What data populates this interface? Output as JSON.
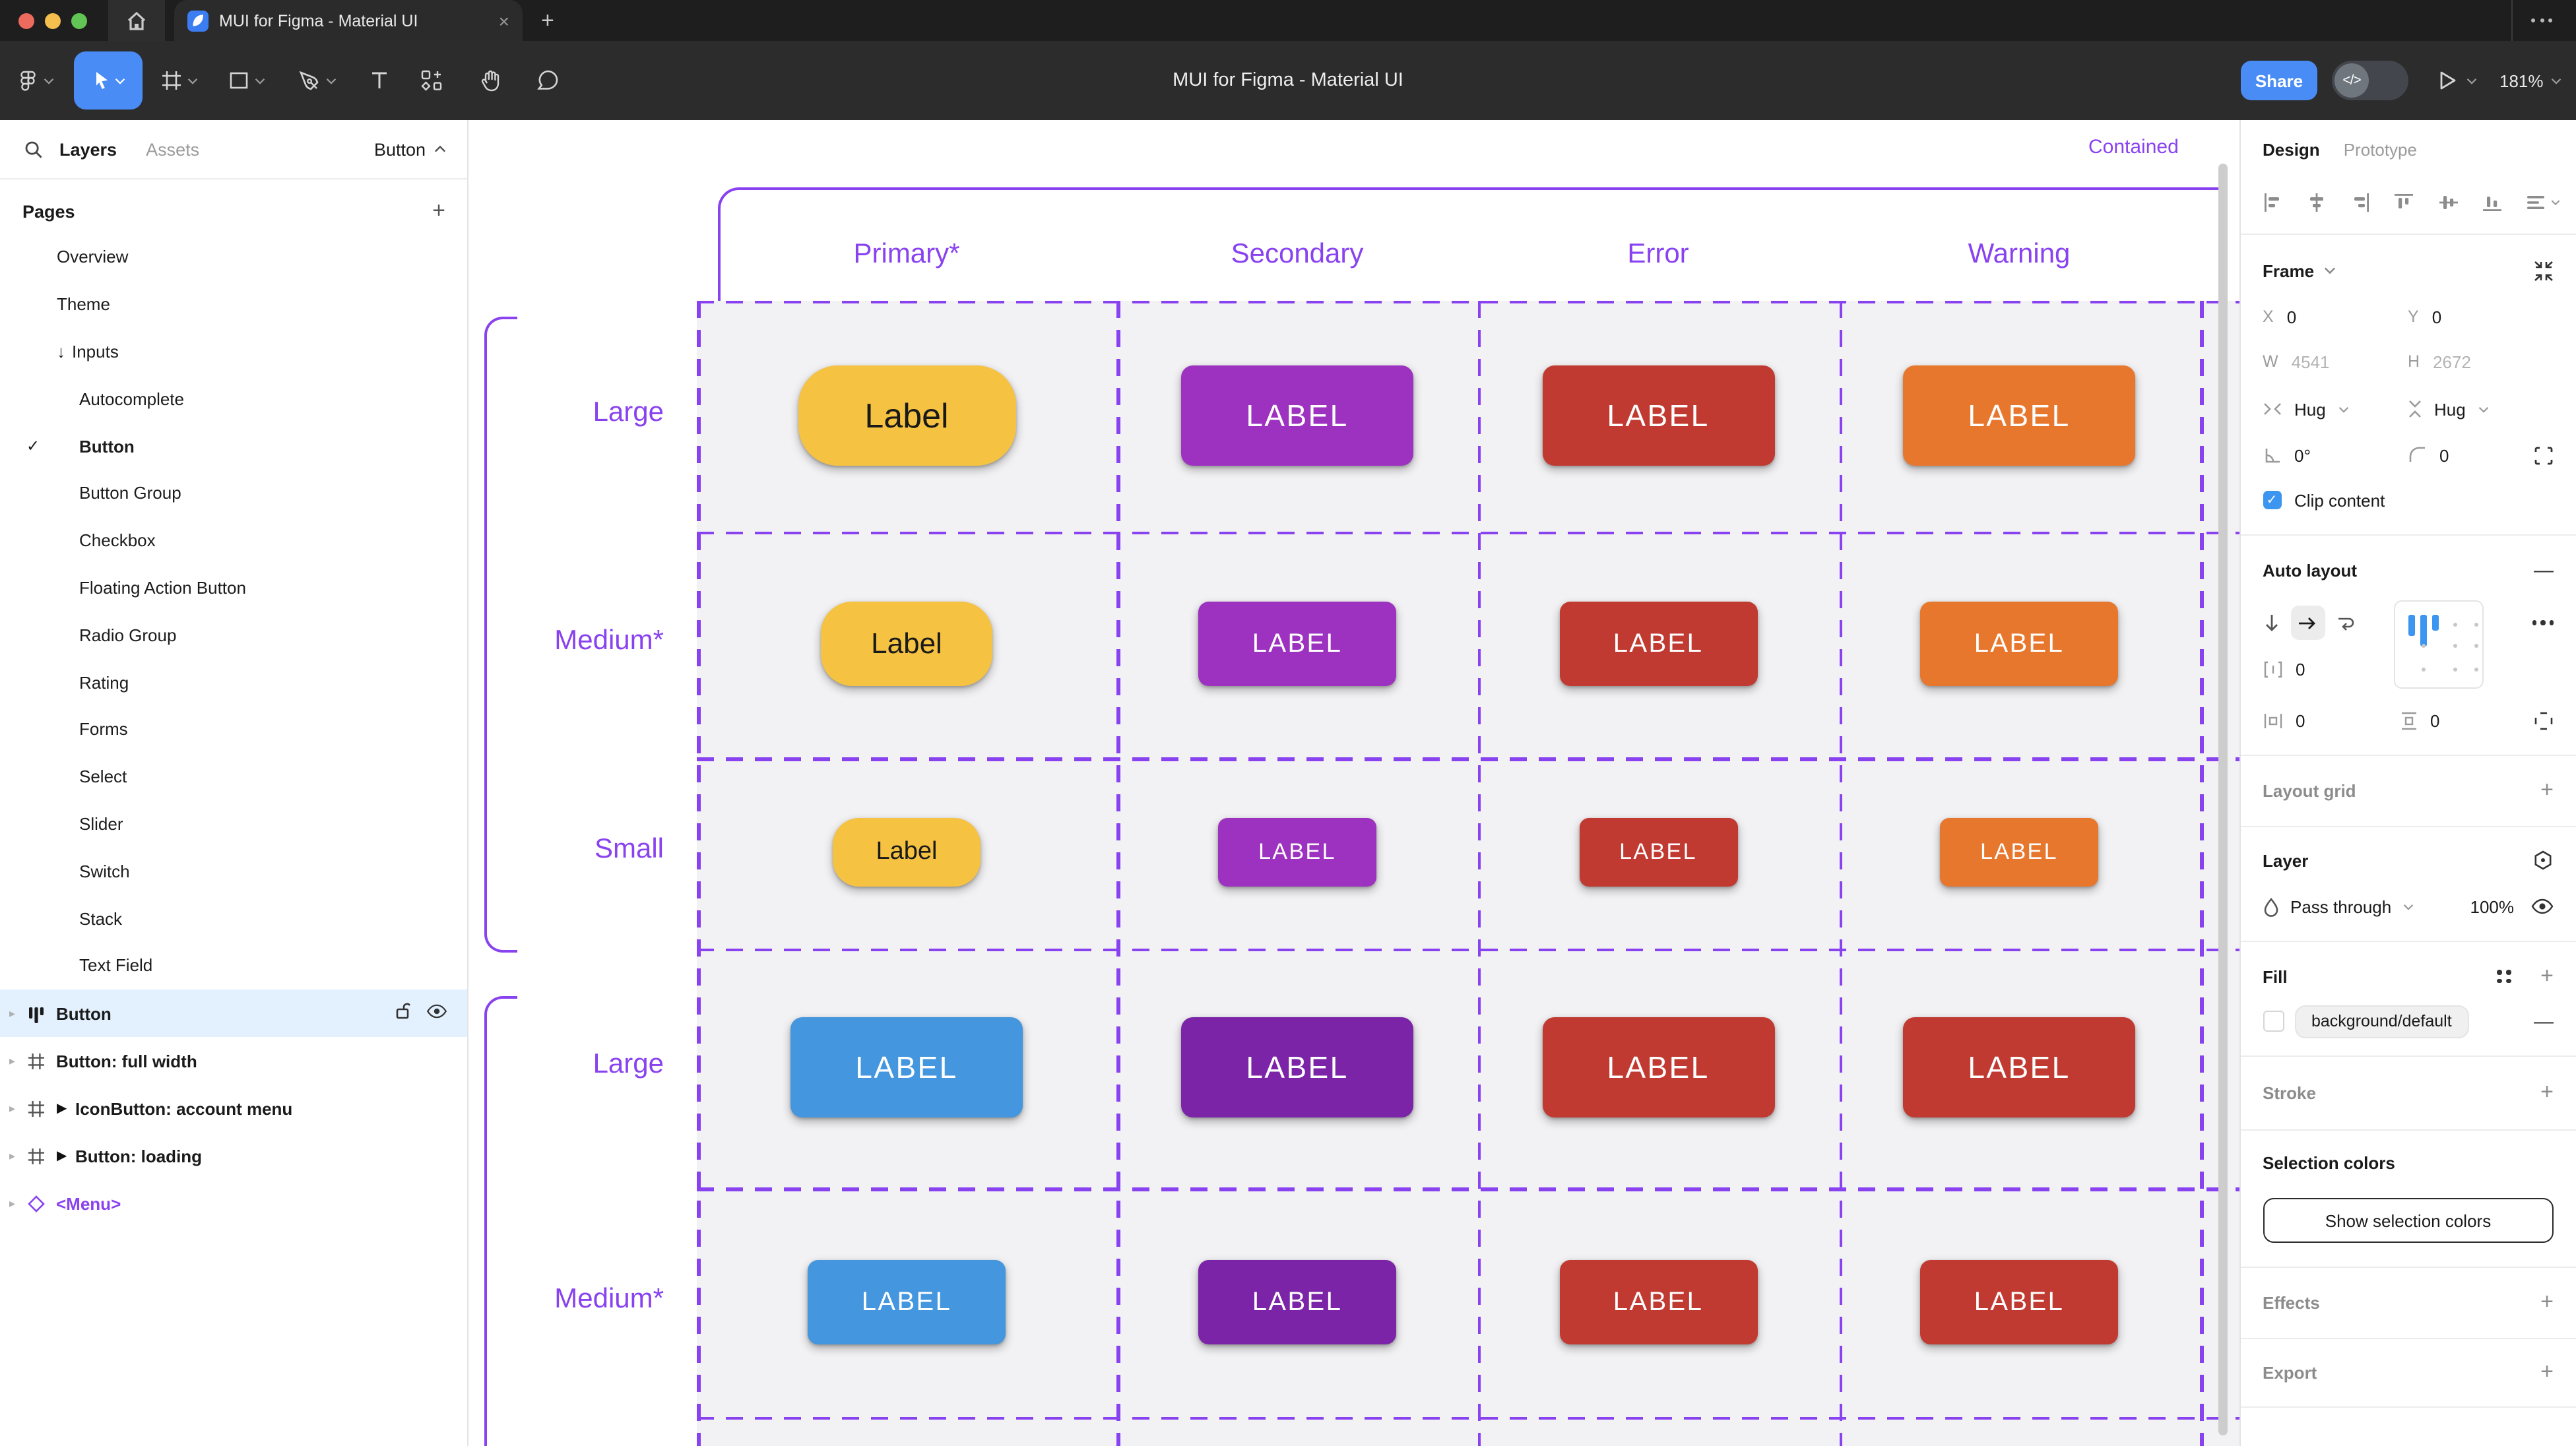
{
  "window": {
    "tab_title": "MUI for Figma - Material UI",
    "close_glyph": "×"
  },
  "toolbar": {
    "title": "MUI for Figma - Material UI",
    "share_label": "Share",
    "dev_toggle_label": "</>",
    "zoom_level": "181%",
    "tools": [
      "figma-menu",
      "move",
      "frame",
      "shape",
      "pen",
      "text",
      "actions",
      "hand",
      "comment"
    ]
  },
  "sidebar": {
    "tabs": {
      "layers": "Layers",
      "assets": "Assets"
    },
    "page_selector": "Button",
    "pages_title": "Pages",
    "pages": [
      {
        "label": "Overview",
        "indent": 1
      },
      {
        "label": "Theme",
        "indent": 1
      },
      {
        "label": "Inputs",
        "indent": 1,
        "arrow": true
      },
      {
        "label": "Autocomplete",
        "indent": 2
      },
      {
        "label": "Button",
        "indent": 2,
        "checked": true,
        "current": true
      },
      {
        "label": "Button Group",
        "indent": 2
      },
      {
        "label": "Checkbox",
        "indent": 2
      },
      {
        "label": "Floating Action Button",
        "indent": 2
      },
      {
        "label": "Radio Group",
        "indent": 2
      },
      {
        "label": "Rating",
        "indent": 2
      },
      {
        "label": "Forms",
        "indent": 2
      },
      {
        "label": "Select",
        "indent": 2
      },
      {
        "label": "Slider",
        "indent": 2
      },
      {
        "label": "Switch",
        "indent": 2
      },
      {
        "label": "Stack",
        "indent": 2
      },
      {
        "label": "Text Field",
        "indent": 2
      }
    ],
    "layers": [
      {
        "label": "Button",
        "icon": "autolayout",
        "selected": true
      },
      {
        "label": "Button: full width",
        "icon": "frame"
      },
      {
        "label": "IconButton: account menu",
        "icon": "frame",
        "play": true
      },
      {
        "label": "Button: loading",
        "icon": "frame",
        "play": true
      },
      {
        "label": "<Menu>",
        "icon": "component",
        "purple": true
      }
    ]
  },
  "canvas": {
    "frame_label": "Contained",
    "column_headers": [
      "Primary*",
      "Secondary",
      "Error",
      "Warning"
    ],
    "button_rows": [
      {
        "size": "large",
        "row_label": "Large",
        "buttons": [
          {
            "text": "Label",
            "color": "#F5C242",
            "text_color": "#1A1A1A",
            "shape": "pill"
          },
          {
            "text": "LABEL",
            "color": "#9D32C0"
          },
          {
            "text": "LABEL",
            "color": "#C13A31"
          },
          {
            "text": "LABEL",
            "color": "#E8772E"
          }
        ]
      },
      {
        "size": "medium",
        "row_label": "Medium*",
        "buttons": [
          {
            "text": "Label",
            "color": "#F5C242",
            "text_color": "#1A1A1A",
            "shape": "pill"
          },
          {
            "text": "LABEL",
            "color": "#9D32C0"
          },
          {
            "text": "LABEL",
            "color": "#C13A31"
          },
          {
            "text": "LABEL",
            "color": "#E8772E"
          }
        ]
      },
      {
        "size": "small",
        "row_label": "Small",
        "buttons": [
          {
            "text": "Label",
            "color": "#F5C242",
            "text_color": "#1A1A1A",
            "shape": "pill"
          },
          {
            "text": "LABEL",
            "color": "#9D32C0"
          },
          {
            "text": "LABEL",
            "color": "#C13A31"
          },
          {
            "text": "LABEL",
            "color": "#E8772E"
          }
        ]
      },
      {
        "size": "large",
        "row_label": "Large",
        "buttons": [
          {
            "text": "LABEL",
            "color": "#4496DE"
          },
          {
            "text": "LABEL",
            "color": "#7B24A8"
          },
          {
            "text": "LABEL",
            "color": "#C13A31"
          },
          {
            "text": "LABEL",
            "color": "#C13A31"
          }
        ]
      },
      {
        "size": "medium",
        "row_label": "Medium*",
        "buttons": [
          {
            "text": "LABEL",
            "color": "#4496DE"
          },
          {
            "text": "LABEL",
            "color": "#7B24A8"
          },
          {
            "text": "LABEL",
            "color": "#C13A31"
          },
          {
            "text": "LABEL",
            "color": "#C13A31"
          }
        ]
      }
    ]
  },
  "inspector": {
    "tabs": {
      "design": "Design",
      "prototype": "Prototype"
    },
    "frame": {
      "title": "Frame",
      "x_label": "X",
      "x_value": "0",
      "y_label": "Y",
      "y_value": "0",
      "w_label": "W",
      "w_value": "4541",
      "h_label": "H",
      "h_value": "2672",
      "h_sizing": "Hug",
      "v_sizing": "Hug",
      "rotation": "0°",
      "corner_radius": "0",
      "clip_label": "Clip content"
    },
    "auto_layout": {
      "title": "Auto layout",
      "gap": "0",
      "padding_h": "0",
      "padding_v": "0"
    },
    "layout_grid": {
      "title": "Layout grid"
    },
    "layer": {
      "title": "Layer",
      "blend_mode": "Pass through",
      "opacity": "100%"
    },
    "fill": {
      "title": "Fill",
      "style_name": "background/default"
    },
    "stroke": {
      "title": "Stroke"
    },
    "selection_colors": {
      "title": "Selection colors",
      "button_label": "Show selection colors"
    },
    "effects": {
      "title": "Effects"
    },
    "export": {
      "title": "Export"
    }
  },
  "colors": {
    "accent_purple": "#8942F0",
    "figma_blue": "#4A8CF5",
    "cell_background": "#F2F2F4",
    "selected_row": "#E3F1FF"
  }
}
